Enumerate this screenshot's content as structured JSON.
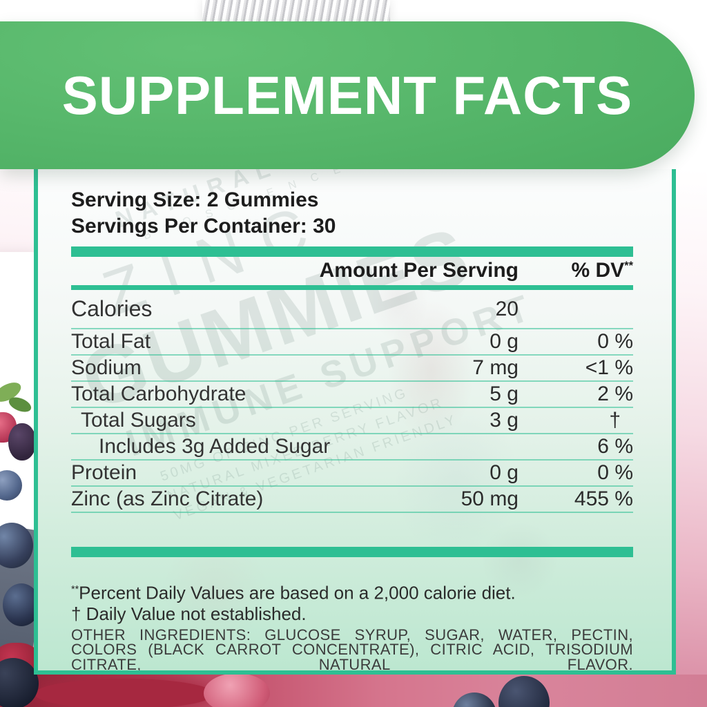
{
  "banner": {
    "title": "SUPPLEMENT FACTS"
  },
  "serving": {
    "size_line": "Serving Size: 2 Gummies",
    "container_line": "Servings Per Container: 30"
  },
  "table": {
    "amount_header": "Amount Per Serving",
    "dv_header": "% DV",
    "dv_header_sup": "**",
    "rows": [
      {
        "name": "Calories",
        "amount": "20",
        "dv": "",
        "indent": 0,
        "style": "calories"
      },
      {
        "name": "Total Fat",
        "amount": "0 g",
        "dv": "0 %",
        "indent": 0
      },
      {
        "name": "Sodium",
        "amount": "7 mg",
        "dv": "<1 %",
        "indent": 0
      },
      {
        "name": "Total Carbohydrate",
        "amount": "5 g",
        "dv": "2 %",
        "indent": 0
      },
      {
        "name": "Total Sugars",
        "amount": "3 g",
        "dv": "†",
        "indent": 1
      },
      {
        "name": "Includes 3g Added Sugar",
        "amount": "",
        "dv": "6 %",
        "indent": 2
      },
      {
        "name": "Protein",
        "amount": "0 g",
        "dv": "0 %",
        "indent": 0
      },
      {
        "name": "Zinc (as Zinc Citrate)",
        "amount": "50 mg",
        "dv": "455 %",
        "indent": 0
      }
    ]
  },
  "footnotes": {
    "dv_note_marker": "**",
    "dv_note": "Percent Daily Values are based on a 2,000 calorie diet.",
    "dagger_note": "† Daily Value not established."
  },
  "other_ingredients": {
    "label": "OTHER INGREDIENTS:",
    "text": "GLUCOSE SYRUP, SUGAR, WATER, PECTIN, COLORS (BLACK CARROT CONCENTRATE), CITRIC ACID, TRISODIUM CITRATE, NATURAL FLAVOR."
  },
  "watermark": {
    "brand": "NATURAL",
    "brand2": "B I O S C I E N C E",
    "product": "ZINC",
    "product2": "GUMMIES",
    "claim": "IMMUNE SUPPORT",
    "s1": "50MG OF ZINC PER SERVING",
    "s2": "NATURAL MIXED BERRY FLAVOR",
    "s3": "VEGAN & VEGETARIAN FRIENDLY"
  },
  "colors": {
    "banner_green": "#4fb264",
    "accent_teal": "#2ebf93",
    "background_pink": "#d3809a",
    "panel_mint": "#bce7d0",
    "text_dark": "#2e2e2e"
  }
}
